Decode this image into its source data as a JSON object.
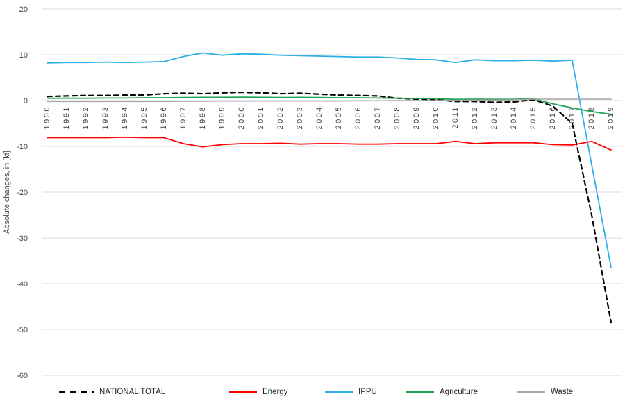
{
  "chart_data": {
    "type": "line",
    "title": "",
    "xlabel": "",
    "ylabel": "Absolute changes, in [kt]",
    "ylim": [
      -60,
      20
    ],
    "yticks": [
      20,
      10,
      0,
      -10,
      -20,
      -30,
      -40,
      -50,
      -60
    ],
    "grid": "horizontal",
    "legend_position": "bottom",
    "categories": [
      "1990",
      "1991",
      "1992",
      "1993",
      "1994",
      "1995",
      "1996",
      "1997",
      "1998",
      "1999",
      "2000",
      "2001",
      "2002",
      "2003",
      "2004",
      "2005",
      "2006",
      "2007",
      "2008",
      "2009",
      "2010",
      "2011",
      "2012",
      "2013",
      "2014",
      "2015",
      "2016",
      "2017",
      "2018",
      "2019"
    ],
    "series": [
      {
        "name": "NATIONAL TOTAL",
        "color": "#000000",
        "style": "dashed",
        "values": [
          0.9,
          1.0,
          1.1,
          1.1,
          1.2,
          1.2,
          1.5,
          1.6,
          1.5,
          1.7,
          1.8,
          1.7,
          1.5,
          1.6,
          1.4,
          1.2,
          1.1,
          1.0,
          0.5,
          0.3,
          0.2,
          -0.2,
          -0.2,
          -0.4,
          -0.3,
          0.2,
          -1.2,
          -5.0,
          -25.0,
          -48.5
        ]
      },
      {
        "name": "Energy",
        "color": "#FE0000",
        "style": "solid",
        "values": [
          -8.1,
          -8.1,
          -8.1,
          -8.1,
          -8.0,
          -8.1,
          -8.1,
          -9.4,
          -10.1,
          -9.6,
          -9.4,
          -9.4,
          -9.3,
          -9.5,
          -9.4,
          -9.4,
          -9.5,
          -9.5,
          -9.4,
          -9.4,
          -9.4,
          -8.9,
          -9.4,
          -9.2,
          -9.2,
          -9.2,
          -9.6,
          -9.7,
          -8.9,
          -10.8
        ]
      },
      {
        "name": "IPPU",
        "color": "#29B0E8",
        "style": "solid",
        "values": [
          8.2,
          8.3,
          8.3,
          8.4,
          8.3,
          8.4,
          8.5,
          9.6,
          10.4,
          9.9,
          10.2,
          10.1,
          9.9,
          9.8,
          9.7,
          9.6,
          9.5,
          9.5,
          9.3,
          9.0,
          8.9,
          8.3,
          8.9,
          8.7,
          8.7,
          8.8,
          8.6,
          8.8,
          -14.0,
          -36.5
        ]
      },
      {
        "name": "Agriculture",
        "color": "#1FA456",
        "style": "solid",
        "values": [
          0.5,
          0.5,
          0.5,
          0.55,
          0.55,
          0.6,
          0.6,
          0.65,
          0.7,
          0.7,
          0.75,
          0.7,
          0.65,
          0.7,
          0.65,
          0.6,
          0.6,
          0.55,
          0.5,
          0.45,
          0.4,
          0.25,
          0.3,
          0.25,
          0.25,
          0.4,
          -0.7,
          -1.6,
          -2.4,
          -3.0
        ]
      },
      {
        "name": "Waste",
        "color": "#A6A6A6",
        "style": "solid",
        "values": [
          -0.2,
          -0.2,
          -0.2,
          -0.2,
          -0.2,
          -0.2,
          -0.2,
          -0.15,
          -0.15,
          -0.1,
          -0.1,
          -0.1,
          -0.1,
          -0.1,
          -0.1,
          -0.1,
          -0.05,
          -0.05,
          0.0,
          0.0,
          0.0,
          0.05,
          0.1,
          0.1,
          0.15,
          0.3,
          0.3,
          0.3,
          0.3,
          0.3
        ]
      }
    ]
  },
  "colors": {
    "gridline": "#D9D9D9",
    "tick_label": "#3F3F3F",
    "background": "#FFFFFF"
  }
}
